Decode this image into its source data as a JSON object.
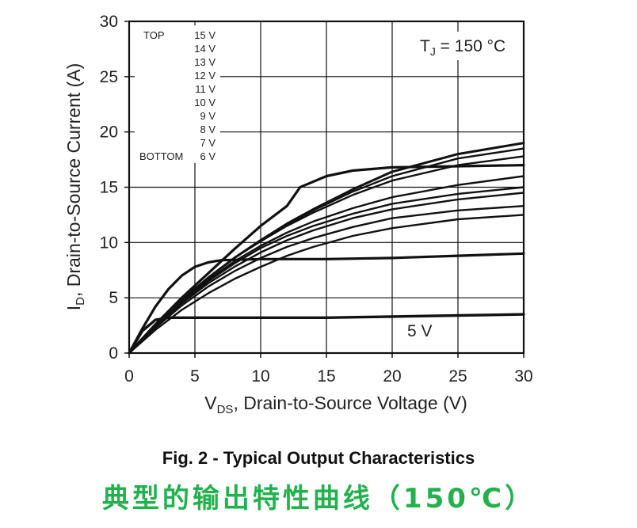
{
  "chart_data": {
    "type": "line",
    "title": "",
    "xlabel_main": "V",
    "xlabel_sub": "DS",
    "xlabel_rest": ", Drain-to-Source Voltage (V)",
    "ylabel_main": "I",
    "ylabel_sub": "D",
    "ylabel_rest": ", Drain-to-Source Current (A)",
    "xlim": [
      0,
      30
    ],
    "ylim": [
      0,
      30
    ],
    "x_ticks": [
      0,
      5,
      10,
      15,
      20,
      25,
      30
    ],
    "y_ticks": [
      0,
      5,
      10,
      15,
      20,
      25,
      30
    ],
    "grid": true,
    "condition": {
      "main": "T",
      "sub": "J",
      "rest": " = 150 °C"
    },
    "legend": {
      "top_label": "TOP",
      "bottom_label": "BOTTOM",
      "entries": [
        "15 V",
        "14 V",
        "13 V",
        "12 V",
        "11 V",
        "10 V",
        "9 V",
        "8 V",
        "7 V",
        "6 V"
      ]
    },
    "curve_annotation": "5 V",
    "series": [
      {
        "name": "15 V",
        "x": [
          0,
          2,
          4,
          6,
          8,
          10,
          12,
          14,
          17,
          20,
          25,
          30
        ],
        "y": [
          0,
          2.5,
          4.8,
          6.8,
          8.6,
          10.2,
          11.7,
          13.0,
          14.8,
          16.4,
          18.0,
          19.0
        ]
      },
      {
        "name": "14 V",
        "x": [
          0,
          2,
          4,
          6,
          8,
          10,
          12,
          14,
          17,
          20,
          25,
          30
        ],
        "y": [
          0,
          2.5,
          4.8,
          6.8,
          8.6,
          10.2,
          11.6,
          12.9,
          14.6,
          16.0,
          17.6,
          18.5
        ]
      },
      {
        "name": "13 V",
        "x": [
          0,
          2,
          4,
          6,
          8,
          10,
          12,
          14,
          17,
          20,
          25,
          30
        ],
        "y": [
          0,
          2.5,
          4.8,
          6.8,
          8.6,
          10.1,
          11.5,
          12.7,
          14.3,
          15.6,
          17.0,
          17.8
        ]
      },
      {
        "name": "12 V",
        "x": [
          0,
          2,
          4,
          6,
          8,
          10,
          12,
          13,
          15,
          17,
          20,
          25,
          30
        ],
        "y": [
          0,
          2.6,
          5.0,
          7.2,
          9.4,
          11.5,
          13.3,
          15.0,
          16.0,
          16.5,
          16.8,
          16.9,
          17.0
        ]
      },
      {
        "name": "11 V",
        "x": [
          0,
          2,
          4,
          6,
          8,
          10,
          12,
          14,
          17,
          20,
          25,
          30
        ],
        "y": [
          0,
          2.5,
          4.7,
          6.6,
          8.3,
          9.7,
          10.9,
          11.9,
          13.1,
          14.1,
          15.2,
          16.0
        ]
      },
      {
        "name": "10 V",
        "x": [
          0,
          2,
          4,
          6,
          8,
          10,
          12,
          14,
          17,
          20,
          25,
          30
        ],
        "y": [
          0,
          2.4,
          4.6,
          6.5,
          8.1,
          9.5,
          10.6,
          11.5,
          12.6,
          13.5,
          14.4,
          15.0
        ]
      },
      {
        "name": "9 V",
        "x": [
          0,
          2,
          4,
          6,
          8,
          10,
          12,
          14,
          17,
          20,
          25,
          30
        ],
        "y": [
          0,
          2.4,
          4.5,
          6.3,
          7.8,
          9.1,
          10.2,
          11.1,
          12.2,
          13.0,
          13.9,
          14.5
        ]
      },
      {
        "name": "8 V",
        "x": [
          0,
          2,
          4,
          6,
          8,
          10,
          12,
          14,
          17,
          20,
          25,
          30
        ],
        "y": [
          0,
          2.3,
          4.3,
          6.0,
          7.4,
          8.6,
          9.6,
          10.4,
          11.4,
          12.2,
          12.9,
          13.3
        ]
      },
      {
        "name": "7 V",
        "x": [
          0,
          2,
          4,
          6,
          8,
          10,
          12,
          14,
          17,
          20,
          25,
          30
        ],
        "y": [
          0,
          2.1,
          3.9,
          5.4,
          6.7,
          7.8,
          8.8,
          9.6,
          10.6,
          11.3,
          12.1,
          12.5
        ]
      },
      {
        "name": "6 V",
        "x": [
          0,
          1,
          2,
          3,
          4,
          5,
          6,
          7,
          10,
          15,
          20,
          25,
          30
        ],
        "y": [
          0,
          2.2,
          4.2,
          5.8,
          7.0,
          7.8,
          8.2,
          8.4,
          8.5,
          8.5,
          8.6,
          8.8,
          9.0
        ]
      },
      {
        "name": "5 V",
        "x": [
          0,
          1,
          2,
          3,
          5,
          10,
          15,
          20,
          25,
          30
        ],
        "y": [
          0,
          2.0,
          3.0,
          3.2,
          3.2,
          3.2,
          3.2,
          3.3,
          3.4,
          3.5
        ]
      }
    ]
  },
  "caption": {
    "english": "Fig. 2 - Typical Output Characteristics",
    "chinese": "典型的输出特性曲线（150℃）",
    "chinese_color": "#22b14c"
  }
}
